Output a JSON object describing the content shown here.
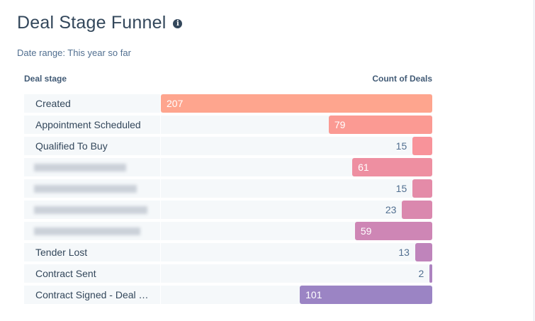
{
  "title": "Deal Stage Funnel",
  "info_icon": "info-circle-icon",
  "date_range": "Date range: This year so far",
  "chart_data": {
    "type": "bar",
    "orientation": "horizontal",
    "xlabel": "Count of Deals",
    "ylabel": "Deal stage",
    "categories": [
      "Created",
      "Appointment Scheduled",
      "Qualified To Buy",
      "",
      "",
      "",
      "",
      "Tender Lost",
      "Contract Sent",
      "Contract Signed - Deal …"
    ],
    "values": [
      207,
      79,
      15,
      61,
      15,
      23,
      59,
      13,
      2,
      101
    ],
    "colors": [
      "#fea58e",
      "#fb9a93",
      "#f8939a",
      "#ee8fa1",
      "#e48ba8",
      "#da88ae",
      "#ce86b5",
      "#bf84bb",
      "#ad83c0",
      "#9b84c4"
    ],
    "xlim": [
      0,
      207
    ],
    "grid": false,
    "legend": "none"
  }
}
